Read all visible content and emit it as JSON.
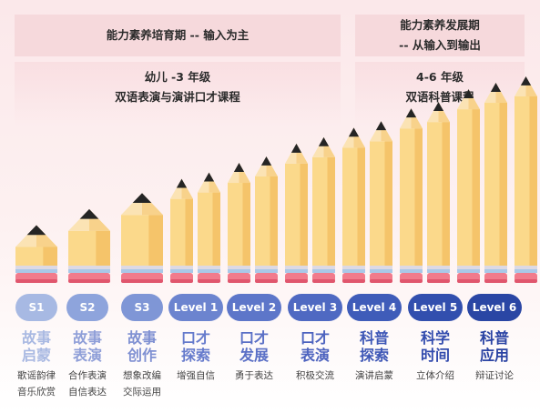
{
  "header": {
    "left_title": "能力素养培育期 -- 输入为主",
    "right_title_line1": "能力素养发展期",
    "right_title_line2": "-- 从输入到输出",
    "left_sub_line1": "幼儿 -3 年级",
    "left_sub_line2": "双语表演与演讲口才课程",
    "right_sub_line1": "4-6 年级",
    "right_sub_line2": "双语科普课程"
  },
  "pencil_levels": [
    0.06,
    0.16,
    0.26,
    0.36,
    0.4,
    0.46,
    0.5,
    0.58,
    0.62,
    0.68,
    0.72,
    0.8,
    0.84,
    0.92,
    0.96,
    1.0
  ],
  "colors": {
    "pencil_body": "#fbd98b",
    "pencil_body_shade": "#f5c46a",
    "pencil_tip": "#252525",
    "pencil_wood": "#fbe3b4",
    "band_gray": "#dcd9e4",
    "band_blue": "#a9c8e8",
    "eraser": "#f17b8c",
    "eraser_dark": "#e0566d"
  },
  "stages": [
    {
      "badge": "S1",
      "title1": "故事",
      "title2": "启蒙",
      "desc1": "歌谣韵律",
      "desc2": "音乐欣赏",
      "badge_color": "#a7b9e3",
      "title_color": "#a9b9e2"
    },
    {
      "badge": "S2",
      "title1": "故事",
      "title2": "表演",
      "desc1": "合作表演",
      "desc2": "自信表达",
      "badge_color": "#8ea4dc",
      "title_color": "#8f9fd8"
    },
    {
      "badge": "S3",
      "title1": "故事",
      "title2": "创作",
      "desc1": "想象改编",
      "desc2": "交际运用",
      "badge_color": "#7f96d6",
      "title_color": "#7f90d2"
    },
    {
      "badge": "Level 1",
      "title1": "口才",
      "title2": "探索",
      "desc1": "增强自信",
      "desc2": "",
      "badge_color": "#6c84cf",
      "title_color": "#667bcc"
    },
    {
      "badge": "Level 2",
      "title1": "口才",
      "title2": "发展",
      "desc1": "勇于表达",
      "desc2": "",
      "badge_color": "#5d76c9",
      "title_color": "#5b70c6"
    },
    {
      "badge": "Level 3",
      "title1": "口才",
      "title2": "表演",
      "desc1": "积极交流",
      "desc2": "",
      "badge_color": "#4f69c2",
      "title_color": "#4d63bf"
    },
    {
      "badge": "Level 4",
      "title1": "科普",
      "title2": "探索",
      "desc1": "演讲启蒙",
      "desc2": "",
      "badge_color": "#3f5cb9",
      "title_color": "#3e57b6"
    },
    {
      "badge": "Level 5",
      "title1": "科学",
      "title2": "时间",
      "desc1": "立体介绍",
      "desc2": "",
      "badge_color": "#324fae",
      "title_color": "#324bad"
    },
    {
      "badge": "Level 6",
      "title1": "科普",
      "title2": "应用",
      "desc1": "辩证讨论",
      "desc2": "",
      "badge_color": "#2a46a4",
      "title_color": "#2a43a3"
    }
  ]
}
